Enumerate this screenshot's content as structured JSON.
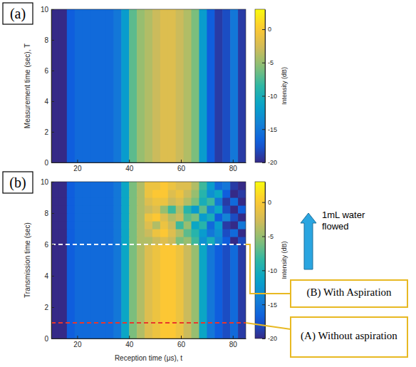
{
  "chart_data": [
    {
      "type": "heatmap",
      "panel": "(a)",
      "ylabel": "Measurement time (sec), T",
      "xlim": [
        10,
        85
      ],
      "xticks": [
        20,
        40,
        60,
        80
      ],
      "ylim": [
        0,
        10
      ],
      "yticks": [
        0,
        2,
        4,
        6,
        8,
        10
      ],
      "x_edges": [
        10,
        13,
        16,
        19,
        22,
        25,
        28,
        31,
        34,
        37,
        40,
        43,
        46,
        49,
        52,
        55,
        58,
        61,
        64,
        67,
        70,
        73,
        76,
        79,
        82,
        85
      ],
      "y_edges": [
        0,
        10
      ],
      "values": [
        [
          -20,
          -20,
          -17,
          -16,
          -16,
          -16,
          -16,
          -16,
          -15,
          -12,
          -7,
          -5,
          -4,
          -3,
          -2,
          -2,
          -3,
          -4,
          -6,
          -12,
          -17,
          -19,
          -18,
          -15,
          -19
        ]
      ],
      "colorbar": {
        "label": "Intensity (dB)",
        "lim": [
          -20,
          3
        ],
        "ticks": [
          0,
          -5,
          -10,
          -15,
          -20
        ]
      }
    },
    {
      "type": "heatmap",
      "panel": "(b)",
      "xlabel": "Reception time (μs), t",
      "ylabel": "Transmission time (sec)",
      "xlim": [
        10,
        85
      ],
      "xticks": [
        20,
        40,
        60,
        80
      ],
      "ylim": [
        0,
        10
      ],
      "yticks": [
        0,
        2,
        4,
        6,
        8,
        10
      ],
      "x_edges": [
        10,
        13,
        16,
        19,
        22,
        25,
        28,
        31,
        34,
        37,
        40,
        43,
        46,
        49,
        52,
        55,
        58,
        61,
        64,
        67,
        70,
        73,
        76,
        79,
        82,
        85
      ],
      "y_edges": [
        0,
        6,
        6.5,
        7,
        7.5,
        8,
        8.5,
        9,
        9.5,
        10
      ],
      "values": [
        [
          -20,
          -20,
          -17,
          -16,
          -16,
          -16,
          -16,
          -16,
          -15,
          -11,
          -6,
          -4,
          -2,
          -1,
          0,
          0,
          -1,
          -3,
          -5,
          -11,
          -15,
          -17,
          -18,
          -16,
          -19
        ],
        [
          -20,
          -20,
          -17,
          -16,
          -16,
          -16,
          -16,
          -16,
          -15,
          -11,
          -6,
          -4,
          -4,
          -3,
          -2,
          -3,
          -6,
          -5,
          -8,
          -13,
          -10,
          -14,
          -17,
          -20,
          -18
        ],
        [
          -20,
          -20,
          -17,
          -16,
          -16,
          -16,
          -16,
          -16,
          -15,
          -11,
          -6,
          -4,
          -3,
          -1,
          0,
          -2,
          -4,
          -7,
          -9,
          -12,
          -15,
          -13,
          -18,
          -16,
          -20
        ],
        [
          -20,
          -20,
          -17,
          -16,
          -16,
          -16,
          -16,
          -16,
          -15,
          -11,
          -6,
          -4,
          -2,
          -4,
          -1,
          -3,
          -8,
          -5,
          -11,
          -9,
          -16,
          -12,
          -19,
          -20,
          -15
        ],
        [
          -20,
          -20,
          -17,
          -16,
          -16,
          -16,
          -16,
          -16,
          -15,
          -11,
          -6,
          -4,
          -1,
          0,
          -2,
          -4,
          -3,
          -7,
          -6,
          -12,
          -10,
          -17,
          -14,
          -18,
          -20
        ],
        [
          -20,
          -20,
          -17,
          -16,
          -16,
          -16,
          -16,
          -16,
          -15,
          -11,
          -6,
          -4,
          -3,
          -2,
          -5,
          -8,
          -4,
          -9,
          -12,
          -7,
          -14,
          -11,
          -18,
          -20,
          -17
        ],
        [
          -20,
          -20,
          -17,
          -16,
          -16,
          -16,
          -16,
          -16,
          -15,
          -11,
          -6,
          -4,
          -2,
          -1,
          -1,
          -3,
          -2,
          -4,
          -6,
          -10,
          -8,
          -15,
          -19,
          -16,
          -20
        ],
        [
          -20,
          -20,
          -17,
          -16,
          -16,
          -16,
          -16,
          -16,
          -15,
          -11,
          -6,
          -4,
          -1,
          0,
          0,
          -2,
          -1,
          -3,
          -5,
          -9,
          -13,
          -11,
          -17,
          -20,
          -19
        ],
        [
          -20,
          -20,
          -17,
          -16,
          -16,
          -16,
          -16,
          -16,
          -15,
          -11,
          -6,
          -4,
          -1,
          -1,
          0,
          -1,
          -2,
          -2,
          -4,
          -8,
          -12,
          -16,
          -15,
          -19,
          -20
        ]
      ],
      "colorbar": {
        "label": "Intensity (dB)",
        "lim": [
          -20,
          3
        ],
        "ticks": [
          0,
          -5,
          -10,
          -15,
          -20
        ]
      },
      "annotations": [
        {
          "text": "(B) With Aspiration",
          "y": 6,
          "color": "#ffffff",
          "line_style": "dashed"
        },
        {
          "text": "(A) Without aspiration",
          "y": 1,
          "color": "#e8372c",
          "line_style": "dashed"
        },
        {
          "text": "1mL water flowed"
        }
      ]
    }
  ]
}
